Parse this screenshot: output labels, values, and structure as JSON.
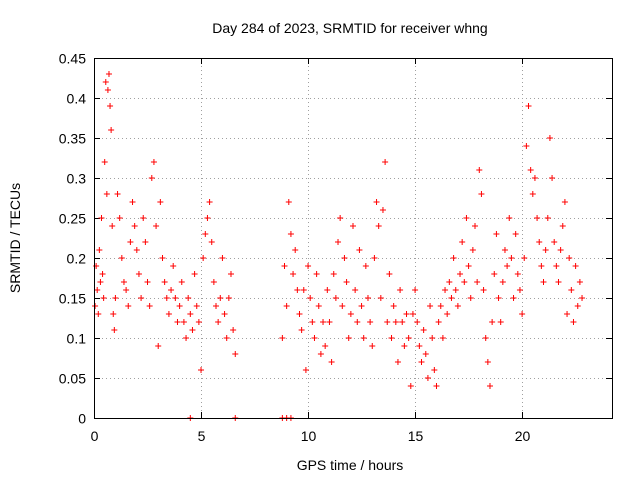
{
  "chart_data": {
    "type": "scatter",
    "title": "Day 284 of 2023, SRMTID for receiver whng",
    "xlabel": "GPS time / hours",
    "ylabel": "SRMTID / TECUs",
    "xlim": [
      0,
      24.2
    ],
    "ylim": [
      0,
      0.45
    ],
    "xticks": [
      0,
      5,
      10,
      15,
      20
    ],
    "xtick_labels": [
      "0",
      "5",
      "10",
      "15",
      "20"
    ],
    "yticks": [
      0,
      0.05,
      0.1,
      0.15,
      0.2,
      0.25,
      0.3,
      0.35,
      0.4,
      0.45
    ],
    "ytick_labels": [
      "0",
      "0.05",
      "0.1",
      "0.15",
      "0.2",
      "0.25",
      "0.3",
      "0.35",
      "0.4",
      "0.45"
    ],
    "grid": true,
    "marker": "+",
    "marker_color": "#ff0000",
    "series": [
      {
        "name": "SRMTID",
        "points": [
          [
            0.05,
            0.14
          ],
          [
            0.1,
            0.19
          ],
          [
            0.15,
            0.16
          ],
          [
            0.2,
            0.13
          ],
          [
            0.25,
            0.21
          ],
          [
            0.3,
            0.17
          ],
          [
            0.35,
            0.25
          ],
          [
            0.4,
            0.18
          ],
          [
            0.45,
            0.15
          ],
          [
            0.5,
            0.32
          ],
          [
            0.55,
            0.42
          ],
          [
            0.6,
            0.28
          ],
          [
            0.65,
            0.41
          ],
          [
            0.7,
            0.43
          ],
          [
            0.75,
            0.39
          ],
          [
            0.8,
            0.36
          ],
          [
            0.85,
            0.24
          ],
          [
            0.9,
            0.13
          ],
          [
            0.95,
            0.11
          ],
          [
            1.0,
            0.15
          ],
          [
            1.1,
            0.28
          ],
          [
            1.2,
            0.25
          ],
          [
            1.3,
            0.2
          ],
          [
            1.4,
            0.17
          ],
          [
            1.5,
            0.16
          ],
          [
            1.6,
            0.14
          ],
          [
            1.7,
            0.22
          ],
          [
            1.8,
            0.27
          ],
          [
            1.9,
            0.24
          ],
          [
            2.0,
            0.21
          ],
          [
            2.1,
            0.18
          ],
          [
            2.2,
            0.15
          ],
          [
            2.3,
            0.25
          ],
          [
            2.4,
            0.22
          ],
          [
            2.5,
            0.17
          ],
          [
            2.6,
            0.14
          ],
          [
            2.7,
            0.3
          ],
          [
            2.8,
            0.32
          ],
          [
            2.9,
            0.24
          ],
          [
            3.0,
            0.09
          ],
          [
            3.1,
            0.27
          ],
          [
            3.2,
            0.2
          ],
          [
            3.3,
            0.17
          ],
          [
            3.4,
            0.15
          ],
          [
            3.5,
            0.13
          ],
          [
            3.6,
            0.16
          ],
          [
            3.7,
            0.19
          ],
          [
            3.8,
            0.15
          ],
          [
            3.9,
            0.12
          ],
          [
            4.0,
            0.14
          ],
          [
            4.1,
            0.17
          ],
          [
            4.2,
            0.12
          ],
          [
            4.3,
            0.1
          ],
          [
            4.4,
            0.15
          ],
          [
            4.5,
            0.13
          ],
          [
            4.6,
            0.11
          ],
          [
            4.7,
            0.18
          ],
          [
            4.8,
            0.14
          ],
          [
            4.9,
            0.12
          ],
          [
            5.0,
            0.06
          ],
          [
            5.1,
            0.2
          ],
          [
            5.2,
            0.23
          ],
          [
            5.3,
            0.25
          ],
          [
            5.4,
            0.27
          ],
          [
            5.5,
            0.22
          ],
          [
            5.6,
            0.17
          ],
          [
            5.7,
            0.14
          ],
          [
            5.8,
            0.12
          ],
          [
            5.9,
            0.15
          ],
          [
            6.0,
            0.2
          ],
          [
            6.1,
            0.13
          ],
          [
            6.2,
            0.1
          ],
          [
            6.3,
            0.15
          ],
          [
            6.4,
            0.18
          ],
          [
            6.5,
            0.11
          ],
          [
            6.6,
            0.08
          ],
          [
            4.5,
            0.0
          ],
          [
            6.6,
            0.0
          ],
          [
            8.8,
            0.0
          ],
          [
            9.0,
            0.0
          ],
          [
            9.2,
            0.0
          ],
          [
            8.8,
            0.1
          ],
          [
            8.9,
            0.19
          ],
          [
            9.0,
            0.14
          ],
          [
            9.1,
            0.27
          ],
          [
            9.2,
            0.23
          ],
          [
            9.3,
            0.18
          ],
          [
            9.4,
            0.21
          ],
          [
            9.5,
            0.16
          ],
          [
            9.6,
            0.13
          ],
          [
            9.7,
            0.11
          ],
          [
            9.8,
            0.16
          ],
          [
            9.9,
            0.06
          ],
          [
            10.0,
            0.19
          ],
          [
            10.1,
            0.15
          ],
          [
            10.2,
            0.12
          ],
          [
            10.3,
            0.1
          ],
          [
            10.4,
            0.18
          ],
          [
            10.5,
            0.14
          ],
          [
            10.6,
            0.08
          ],
          [
            10.7,
            0.12
          ],
          [
            10.8,
            0.09
          ],
          [
            10.9,
            0.16
          ],
          [
            11.0,
            0.12
          ],
          [
            11.1,
            0.07
          ],
          [
            11.2,
            0.18
          ],
          [
            11.3,
            0.15
          ],
          [
            11.4,
            0.22
          ],
          [
            11.5,
            0.25
          ],
          [
            11.6,
            0.14
          ],
          [
            11.7,
            0.2
          ],
          [
            11.8,
            0.17
          ],
          [
            11.9,
            0.1
          ],
          [
            12.0,
            0.13
          ],
          [
            12.1,
            0.24
          ],
          [
            12.2,
            0.16
          ],
          [
            12.3,
            0.12
          ],
          [
            12.4,
            0.21
          ],
          [
            12.5,
            0.14
          ],
          [
            12.6,
            0.1
          ],
          [
            12.7,
            0.19
          ],
          [
            12.8,
            0.15
          ],
          [
            12.9,
            0.12
          ],
          [
            13.0,
            0.09
          ],
          [
            13.1,
            0.2
          ],
          [
            13.2,
            0.27
          ],
          [
            13.3,
            0.24
          ],
          [
            13.4,
            0.15
          ],
          [
            13.5,
            0.26
          ],
          [
            13.6,
            0.32
          ],
          [
            13.7,
            0.12
          ],
          [
            13.8,
            0.18
          ],
          [
            13.9,
            0.1
          ],
          [
            14.0,
            0.14
          ],
          [
            14.1,
            0.12
          ],
          [
            14.2,
            0.07
          ],
          [
            14.3,
            0.16
          ],
          [
            14.4,
            0.12
          ],
          [
            14.5,
            0.09
          ],
          [
            14.6,
            0.13
          ],
          [
            14.7,
            0.1
          ],
          [
            14.8,
            0.04
          ],
          [
            14.9,
            0.13
          ],
          [
            15.0,
            0.16
          ],
          [
            15.1,
            0.12
          ],
          [
            15.2,
            0.09
          ],
          [
            15.3,
            0.07
          ],
          [
            15.4,
            0.11
          ],
          [
            15.5,
            0.08
          ],
          [
            15.6,
            0.05
          ],
          [
            15.7,
            0.14
          ],
          [
            15.8,
            0.1
          ],
          [
            15.9,
            0.06
          ],
          [
            16.0,
            0.04
          ],
          [
            16.1,
            0.12
          ],
          [
            16.2,
            0.14
          ],
          [
            16.3,
            0.1
          ],
          [
            16.4,
            0.16
          ],
          [
            16.5,
            0.13
          ],
          [
            16.6,
            0.17
          ],
          [
            16.7,
            0.15
          ],
          [
            16.8,
            0.2
          ],
          [
            16.9,
            0.16
          ],
          [
            17.0,
            0.14
          ],
          [
            17.1,
            0.18
          ],
          [
            17.2,
            0.22
          ],
          [
            17.3,
            0.17
          ],
          [
            17.4,
            0.25
          ],
          [
            17.5,
            0.19
          ],
          [
            17.6,
            0.15
          ],
          [
            17.7,
            0.21
          ],
          [
            17.8,
            0.24
          ],
          [
            17.9,
            0.17
          ],
          [
            18.0,
            0.31
          ],
          [
            18.1,
            0.28
          ],
          [
            18.2,
            0.16
          ],
          [
            18.3,
            0.1
          ],
          [
            18.4,
            0.07
          ],
          [
            18.5,
            0.04
          ],
          [
            18.6,
            0.12
          ],
          [
            18.7,
            0.18
          ],
          [
            18.8,
            0.23
          ],
          [
            18.9,
            0.15
          ],
          [
            19.0,
            0.12
          ],
          [
            19.1,
            0.17
          ],
          [
            19.2,
            0.21
          ],
          [
            19.3,
            0.19
          ],
          [
            19.4,
            0.25
          ],
          [
            19.5,
            0.2
          ],
          [
            19.6,
            0.15
          ],
          [
            19.7,
            0.23
          ],
          [
            19.8,
            0.18
          ],
          [
            19.9,
            0.16
          ],
          [
            20.0,
            0.13
          ],
          [
            20.1,
            0.2
          ],
          [
            20.2,
            0.34
          ],
          [
            20.3,
            0.39
          ],
          [
            20.4,
            0.31
          ],
          [
            20.5,
            0.28
          ],
          [
            20.6,
            0.3
          ],
          [
            20.7,
            0.25
          ],
          [
            20.8,
            0.22
          ],
          [
            20.9,
            0.19
          ],
          [
            21.0,
            0.17
          ],
          [
            21.1,
            0.21
          ],
          [
            21.2,
            0.25
          ],
          [
            21.3,
            0.35
          ],
          [
            21.4,
            0.3
          ],
          [
            21.5,
            0.22
          ],
          [
            21.6,
            0.19
          ],
          [
            21.7,
            0.17
          ],
          [
            21.8,
            0.21
          ],
          [
            21.9,
            0.24
          ],
          [
            22.0,
            0.27
          ],
          [
            22.1,
            0.13
          ],
          [
            22.2,
            0.2
          ],
          [
            22.3,
            0.16
          ],
          [
            22.4,
            0.12
          ],
          [
            22.5,
            0.19
          ],
          [
            22.6,
            0.14
          ],
          [
            22.7,
            0.17
          ],
          [
            22.8,
            0.15
          ]
        ]
      }
    ]
  }
}
